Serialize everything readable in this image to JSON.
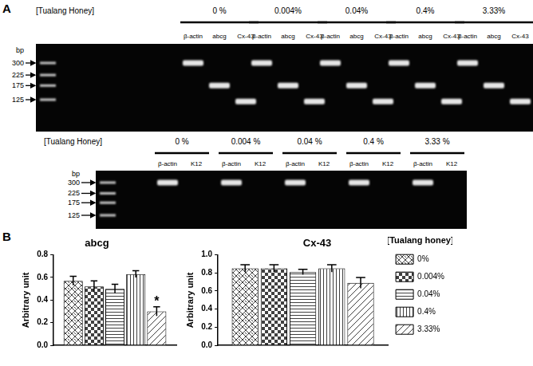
{
  "panel_a": {
    "label": "A",
    "gels": [
      {
        "row_label": "[Tualang Honey]",
        "groups": [
          "0 %",
          "0.004%",
          "0.04%",
          "0.4%",
          "3.33%"
        ],
        "lanes": [
          "β-actin",
          "abcg",
          "Cx-43"
        ],
        "band_bp": [
          300,
          175,
          120
        ],
        "ladder_unit": "bp",
        "ladder_marks": [
          300,
          225,
          175,
          125
        ]
      },
      {
        "row_label": "[Tualang Honey]",
        "groups": [
          "0 %",
          "0.004 %",
          "0.04 %",
          "0.4 %",
          "3.33 %"
        ],
        "lanes": [
          "β-actin",
          "K12"
        ],
        "band_bp": [
          300,
          null
        ],
        "ladder_unit": "bp",
        "ladder_marks": [
          300,
          225,
          175,
          125
        ]
      }
    ]
  },
  "panel_b": {
    "label": "B"
  },
  "chart_data": [
    {
      "type": "bar",
      "title": "abcg",
      "y_label": "Arbitrary unit",
      "categories": [
        null
      ],
      "series": [
        {
          "name": "0%",
          "color": "#404040",
          "values": [
            0.57
          ],
          "errors": [
            0.04
          ]
        },
        {
          "name": "0.004%",
          "color": "#404040",
          "values": [
            0.52
          ],
          "errors": [
            0.05
          ]
        },
        {
          "name": "0.04%",
          "color": "#404040",
          "values": [
            0.5
          ],
          "errors": [
            0.04
          ]
        },
        {
          "name": "0.4%",
          "color": "#404040",
          "values": [
            0.63
          ],
          "errors": [
            0.03
          ]
        },
        {
          "name": "3.33%",
          "color": "#404040",
          "values": [
            0.3
          ],
          "errors": [
            0.04
          ]
        }
      ],
      "ylim": [
        0,
        0.8
      ],
      "yticks": [
        {
          "value": 0,
          "label": "0.0"
        },
        0.2,
        0.4,
        0.6,
        0.8
      ],
      "grid": false,
      "annotations": [
        {
          "text": "*",
          "series": "3.33%"
        }
      ]
    },
    {
      "type": "bar",
      "title": "Cx-43",
      "y_label": "Arbitrary unit",
      "categories": [
        null
      ],
      "series": [
        {
          "name": "0%",
          "color": "#404040",
          "values": [
            0.85
          ],
          "errors": [
            0.04
          ]
        },
        {
          "name": "0.004%",
          "color": "#404040",
          "values": [
            0.85
          ],
          "errors": [
            0.04
          ]
        },
        {
          "name": "0.04%",
          "color": "#404040",
          "values": [
            0.81
          ],
          "errors": [
            0.03
          ]
        },
        {
          "name": "0.4%",
          "color": "#404040",
          "values": [
            0.85
          ],
          "errors": [
            0.04
          ]
        },
        {
          "name": "3.33%",
          "color": "#404040",
          "values": [
            0.69
          ],
          "errors": [
            0.06
          ]
        }
      ],
      "ylim": [
        0,
        1
      ],
      "yticks": [
        {
          "value": 0,
          "label": "0.0"
        },
        0.2,
        0.4,
        0.6,
        0.8,
        {
          "value": 1,
          "label": "1.0"
        }
      ],
      "grid": false,
      "legend": "right",
      "legend_title": "[Tualang honey]"
    }
  ]
}
